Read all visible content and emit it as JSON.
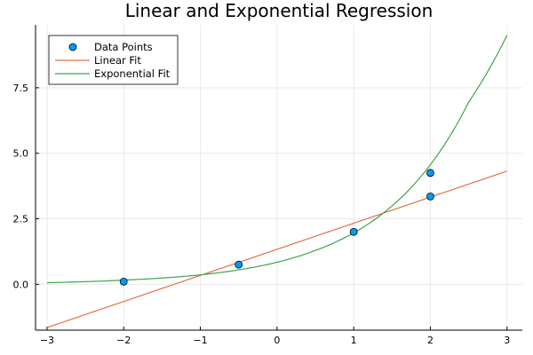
{
  "chart_data": {
    "type": "scatter",
    "title": "Linear and Exponential Regression",
    "xlabel": "",
    "ylabel": "",
    "xlim": [
      -3.15,
      3.2
    ],
    "ylim": [
      -1.75,
      9.9
    ],
    "xticks": [
      -3,
      -2,
      -1,
      0,
      1,
      2,
      3
    ],
    "xtick_labels": [
      "−3",
      "−2",
      "−1",
      "0",
      "1",
      "2",
      "3"
    ],
    "yticks": [
      0,
      2.5,
      5,
      7.5
    ],
    "ytick_labels": [
      "0.0",
      "2.5",
      "5.0",
      "7.5"
    ],
    "grid": true,
    "legend_position": "top-left",
    "series": [
      {
        "name": "Data Points",
        "kind": "scatter",
        "color": "#009af9",
        "x": [
          -2,
          -0.5,
          1,
          2,
          2
        ],
        "y": [
          0.1,
          0.75,
          2.0,
          3.35,
          4.25
        ]
      },
      {
        "name": "Linear Fit",
        "kind": "line",
        "color": "#e26f46",
        "x": [
          -3,
          3
        ],
        "y": [
          -1.65,
          4.32
        ]
      },
      {
        "name": "Exponential Fit",
        "kind": "line",
        "color": "#3da44d",
        "x": [
          -3,
          -2.5,
          -2,
          -1.5,
          -1,
          -0.5,
          0,
          0.5,
          1,
          1.5,
          2,
          2.5,
          3
        ],
        "y": [
          0.06,
          0.1,
          0.16,
          0.24,
          0.36,
          0.55,
          0.84,
          1.29,
          1.96,
          2.99,
          4.56,
          6.95,
          9.5
        ]
      }
    ]
  }
}
